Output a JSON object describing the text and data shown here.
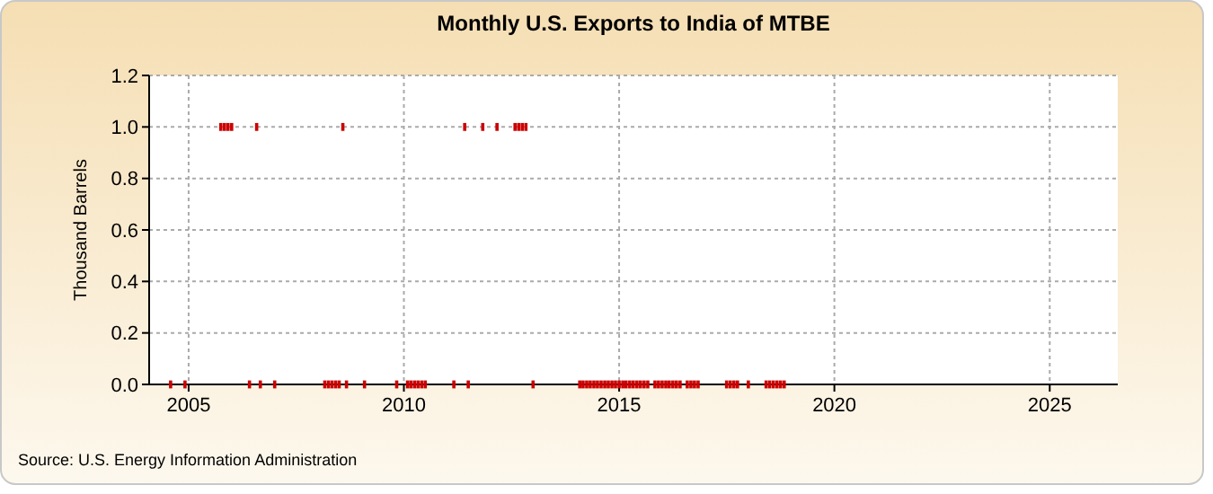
{
  "chart_data": {
    "type": "scatter",
    "title": "Monthly U.S. Exports to India of MTBE",
    "ylabel": "Thousand Barrels",
    "annotations": [
      "Source: U.S. Energy Information Administration"
    ],
    "x": [
      "2004-08",
      "2004-12",
      "2005-10",
      "2005-11",
      "2005-12",
      "2006-01",
      "2006-06",
      "2006-08",
      "2006-09",
      "2007-01",
      "2008-03",
      "2008-04",
      "2008-05",
      "2008-06",
      "2008-07",
      "2008-08",
      "2008-09",
      "2009-02",
      "2009-11",
      "2010-02",
      "2010-03",
      "2010-04",
      "2010-05",
      "2010-06",
      "2010-07",
      "2011-03",
      "2011-06",
      "2011-07",
      "2011-11",
      "2012-03",
      "2012-08",
      "2012-09",
      "2012-10",
      "2012-11",
      "2013-01",
      "2014-02",
      "2014-03",
      "2014-04",
      "2014-05",
      "2014-06",
      "2014-07",
      "2014-08",
      "2014-09",
      "2014-10",
      "2014-11",
      "2014-12",
      "2015-01",
      "2015-02",
      "2015-03",
      "2015-04",
      "2015-05",
      "2015-06",
      "2015-07",
      "2015-08",
      "2015-09",
      "2015-11",
      "2015-12",
      "2016-01",
      "2016-02",
      "2016-03",
      "2016-04",
      "2016-05",
      "2016-06",
      "2016-08",
      "2016-09",
      "2016-10",
      "2016-11",
      "2017-07",
      "2017-08",
      "2017-09",
      "2017-10",
      "2018-01",
      "2018-06",
      "2018-07",
      "2018-08",
      "2018-09",
      "2018-10",
      "2018-11"
    ],
    "values": [
      0,
      0,
      1,
      1,
      1,
      1,
      0,
      1,
      0,
      0,
      0,
      0,
      0,
      0,
      0,
      1,
      0,
      0,
      0,
      0,
      0,
      0,
      0,
      0,
      0,
      0,
      1,
      0,
      1,
      1,
      1,
      1,
      1,
      1,
      0,
      0,
      0,
      0,
      0,
      0,
      0,
      0,
      0,
      0,
      0,
      0,
      0,
      0,
      0,
      0,
      0,
      0,
      0,
      0,
      0,
      0,
      0,
      0,
      0,
      0,
      0,
      0,
      0,
      0,
      0,
      0,
      0,
      0,
      0,
      0,
      0,
      0,
      0,
      0,
      0,
      0,
      0,
      0
    ],
    "color": "#cc0000",
    "marker": "square",
    "grid": true,
    "xlim": [
      "2004-02",
      "2026-08"
    ],
    "xticks": [
      {
        "value": "2005-01",
        "label": "2005"
      },
      {
        "value": "2010-01",
        "label": "2010"
      },
      {
        "value": "2015-01",
        "label": "2015"
      },
      {
        "value": "2020-01",
        "label": "2020"
      },
      {
        "value": "2025-01",
        "label": "2025"
      }
    ],
    "ylim": [
      0,
      1.2
    ],
    "yticks": [
      {
        "value": 0,
        "label": "0.0"
      },
      {
        "value": 0.2,
        "label": "0.2"
      },
      {
        "value": 0.4,
        "label": "0.4"
      },
      {
        "value": 0.6,
        "label": "0.6"
      },
      {
        "value": 0.8,
        "label": "0.8"
      },
      {
        "value": 1,
        "label": "1.0"
      },
      {
        "value": 1.2,
        "label": "1.2"
      }
    ]
  }
}
